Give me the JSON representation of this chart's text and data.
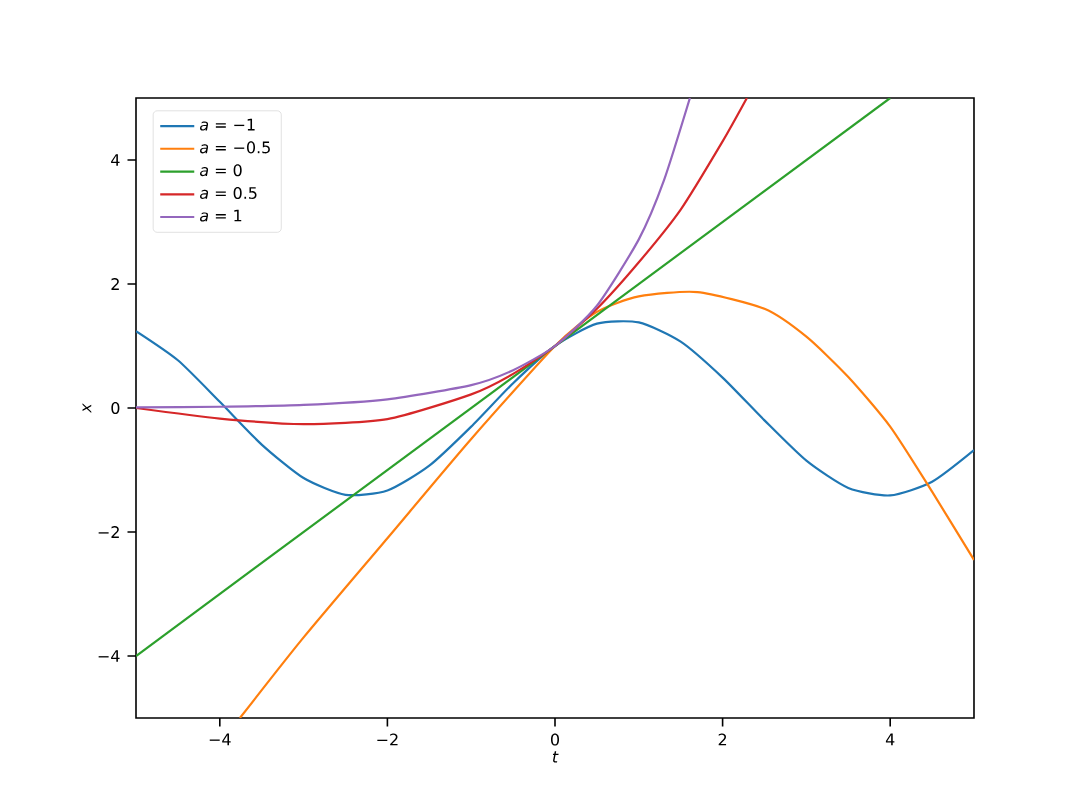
{
  "chart_data": {
    "type": "line",
    "xlabel": "t",
    "ylabel": "x",
    "xlim": [
      -5,
      5
    ],
    "ylim": [
      -5,
      5
    ],
    "xticks": [
      {
        "value": -4,
        "label": "−4"
      },
      {
        "value": -2,
        "label": "−2"
      },
      0,
      2,
      4
    ],
    "yticks": [
      {
        "value": -4,
        "label": "−4"
      },
      {
        "value": -2,
        "label": "−2"
      },
      0,
      2,
      4
    ],
    "grid": false,
    "legend": "top left",
    "marker": "none",
    "line_style": "solid",
    "series": [
      {
        "name": "*a* = −1",
        "color": "#1f77b4",
        "x": [
          -5,
          -4.5,
          -4,
          -3.5,
          -3,
          -2.5,
          -2,
          -1.5,
          -1,
          -0.5,
          0,
          0.5,
          1,
          1.5,
          2,
          2.5,
          3,
          3.5,
          4,
          4.5,
          5
        ],
        "values": [
          1.24,
          0.77,
          0.1,
          -0.59,
          -1.13,
          -1.4,
          -1.33,
          -0.93,
          -0.3,
          0.4,
          1,
          1.36,
          1.38,
          1.07,
          0.49,
          -0.2,
          -0.85,
          -1.29,
          -1.41,
          -1.19,
          -0.68
        ]
      },
      {
        "name": "*a* = −0.5",
        "color": "#ff7f0e",
        "x": [
          -3.76,
          -3,
          -2,
          -1,
          0,
          0.5,
          1,
          1.7,
          2.5,
          3,
          3.5,
          4,
          4.5,
          5
        ],
        "values": [
          -5,
          -3.7,
          -2.1,
          -0.5,
          1,
          1.55,
          1.8,
          1.87,
          1.6,
          1.15,
          0.5,
          -0.3,
          -1.35,
          -2.45
        ]
      },
      {
        "name": "*a* = 0",
        "color": "#2ca02c",
        "x": [
          -5,
          4
        ],
        "values": [
          -4,
          5
        ]
      },
      {
        "name": "*a* = 0.5",
        "color": "#d62728",
        "x": [
          -5,
          -4,
          -3,
          -2,
          -1,
          -0.5,
          0,
          0.5,
          1,
          1.5,
          2,
          2.29
        ],
        "values": [
          0,
          -0.17,
          -0.26,
          -0.18,
          0.22,
          0.55,
          1,
          1.6,
          2.35,
          3.2,
          4.3,
          5
        ]
      },
      {
        "name": "*a* = 1",
        "color": "#9467bd",
        "x": [
          -5,
          -4,
          -3,
          -2,
          -1,
          -0.5,
          0,
          0.5,
          1,
          1.3,
          1.61
        ],
        "values": [
          0.01,
          0.02,
          0.05,
          0.14,
          0.37,
          0.61,
          1,
          1.65,
          2.72,
          3.67,
          5
        ]
      }
    ]
  }
}
